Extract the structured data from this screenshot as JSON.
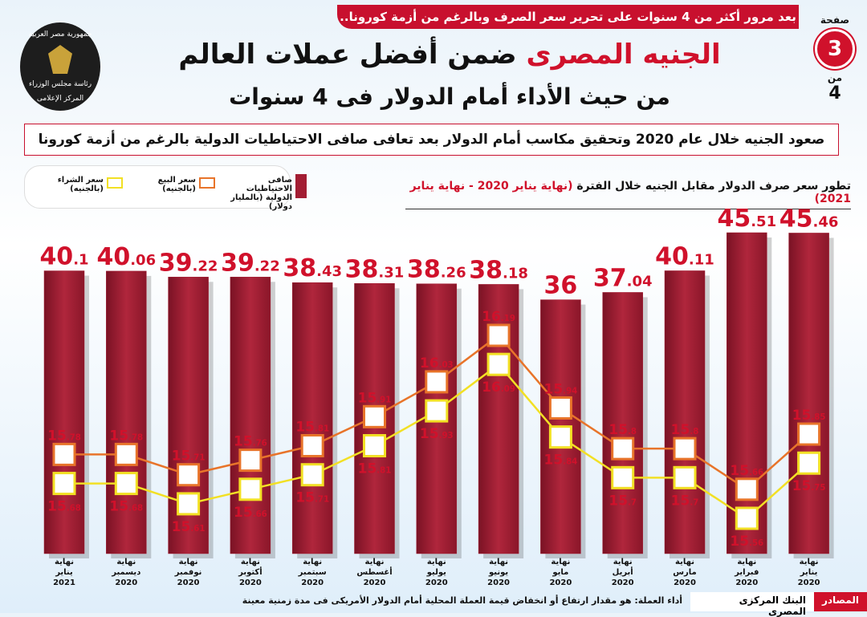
{
  "header": {
    "banner": "بعد مرور أكثر من 4 سنوات على تحرير سعر الصرف وبالرغم من أزمة كورونا..",
    "title_red": "الجنيه المصرى",
    "title_rest": "ضمن أفضل عملات العالم",
    "title_line2": "من حيث الأداء أمام الدولار فى 4 سنوات",
    "subtitle": "صعود الجنيه خلال عام 2020 وتحقيق مكاسب أمام الدولار بعد تعافى صافى الاحتياطيات الدولية بالرغم من أزمة كورونا",
    "page_label": "صفحة",
    "page_number": "3",
    "page_of_label": "من",
    "page_total": "4",
    "logo": [
      "جمهورية مصر العربية",
      "رئاسة مجلس الوزراء",
      "المركز الإعلامى"
    ]
  },
  "chart_data": {
    "type": "bar_line",
    "title": "تطور سعر صرف الدولار مقابل الجنيه خلال الفترة",
    "title_period": "(نهاية يناير 2020 - نهاية يناير 2021)",
    "categories": [
      "نهاية\nيناير\n2021",
      "نهاية\nديسمبر\n2020",
      "نهاية\nنوفمبر\n2020",
      "نهاية\nأكتوبر\n2020",
      "نهاية\nسبتمبر\n2020",
      "نهاية\nأغسطس\n2020",
      "نهاية\nيوليو\n2020",
      "نهاية\nيونيو\n2020",
      "نهاية\nمايو\n2020",
      "نهاية\nأبريل\n2020",
      "نهاية\nمارس\n2020",
      "نهاية\nفبراير\n2020",
      "نهاية\nيناير\n2020"
    ],
    "series": [
      {
        "name": "صافى الاحتياطيات\nالدولية (بالمليار دولار)",
        "color": "#a31d33",
        "kind": "bar",
        "values": [
          40.1,
          40.06,
          39.22,
          39.22,
          38.43,
          38.31,
          38.26,
          38.18,
          36,
          37.04,
          40.11,
          45.51,
          45.46
        ]
      },
      {
        "name": "سعر البيع\n(بالجنيه)",
        "color": "#e8742a",
        "kind": "line",
        "values": [
          15.78,
          15.78,
          15.71,
          15.76,
          15.81,
          15.91,
          16.03,
          16.19,
          15.94,
          15.8,
          15.8,
          15.66,
          15.85
        ]
      },
      {
        "name": "سعر الشراء\n(بالجنيه)",
        "color": "#f2e024",
        "kind": "line",
        "values": [
          15.68,
          15.68,
          15.61,
          15.66,
          15.71,
          15.81,
          15.93,
          16.09,
          15.84,
          15.7,
          15.7,
          15.56,
          15.75
        ]
      }
    ]
  },
  "footer": {
    "note": "أداء العملة: هو مقدار ارتفاع أو انخفاض قيمة العملة المحلية أمام الدولار الأمريكى فى مدة زمنية معينة",
    "sources_label": "المصادر",
    "sources": "البنك المركزى المصرى"
  }
}
